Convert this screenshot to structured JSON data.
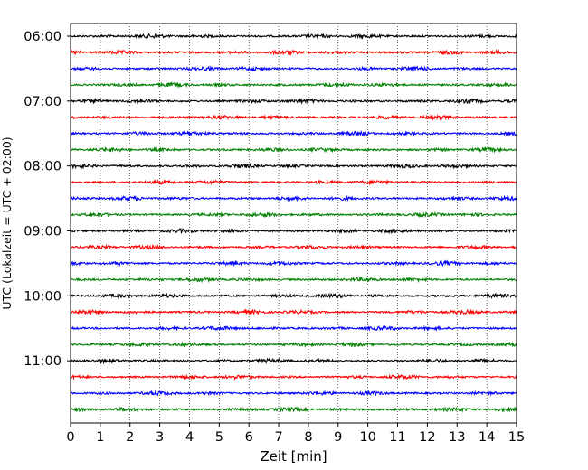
{
  "chart_data": {
    "type": "line",
    "subtype": "helicorder",
    "xlabel": "Zeit  [min]",
    "ylabel": "UTC (Lokalzeit = UTC + 02:00)",
    "xlim": [
      0,
      15
    ],
    "x_ticks": [
      "0",
      "1",
      "2",
      "3",
      "4",
      "5",
      "6",
      "7",
      "8",
      "9",
      "10",
      "11",
      "12",
      "13",
      "14",
      "15"
    ],
    "y_ticks": [
      "06:00",
      "07:00",
      "08:00",
      "09:00",
      "10:00",
      "11:00"
    ],
    "grid": "vertical dotted",
    "trace_minutes": 15,
    "trace_start": "06:00",
    "trace_count": 24,
    "trace_colors": [
      "#000000",
      "#ff0000",
      "#0000ff",
      "#008000"
    ]
  }
}
